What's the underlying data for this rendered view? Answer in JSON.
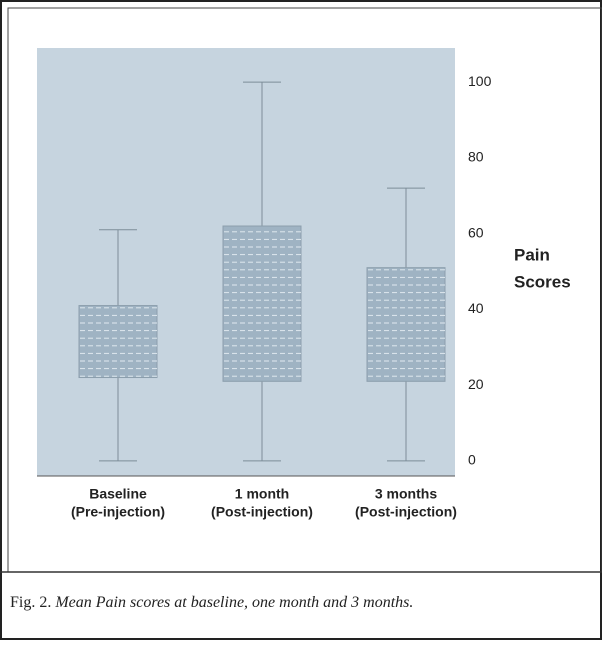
{
  "chart_data": {
    "type": "box",
    "categories": [
      [
        "Baseline",
        "(Pre-injection)"
      ],
      [
        "1 month",
        "(Post-injection)"
      ],
      [
        "3 months",
        "(Post-injection)"
      ]
    ],
    "series": [
      {
        "color": "#9fb3c3",
        "boxes": [
          {
            "min": 0,
            "q1": 22,
            "q3": 41,
            "max": 61
          },
          {
            "min": 0,
            "q1": 21,
            "q3": 62,
            "max": 100
          },
          {
            "min": 0,
            "q1": 21,
            "q3": 51,
            "max": 72
          }
        ]
      }
    ],
    "y_label": [
      "Pain",
      "Scores"
    ],
    "ylim": [
      -4,
      109
    ],
    "yticks": [
      0,
      20,
      40,
      60,
      80,
      100
    ]
  },
  "caption": {
    "label": "Fig. 2.",
    "text": "Mean Pain scores at baseline, one month and 3 months."
  }
}
